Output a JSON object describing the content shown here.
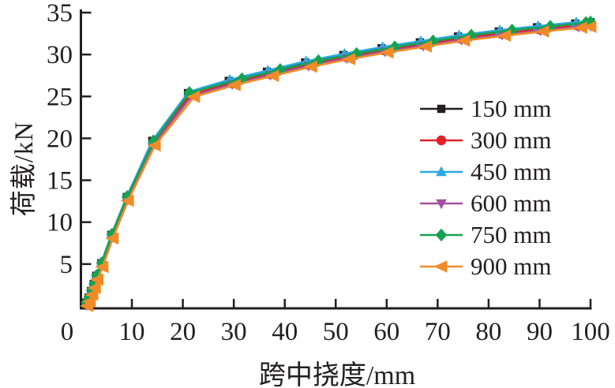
{
  "figure": {
    "background": "#ffffff",
    "text_color": "#231f20"
  },
  "chart_data": {
    "type": "line",
    "title": "",
    "xlabel": "跨中挠度/mm",
    "ylabel": "荷载/kN",
    "xlim": [
      0,
      100
    ],
    "ylim": [
      0,
      35
    ],
    "x_ticks": [
      0,
      10,
      20,
      30,
      40,
      50,
      60,
      70,
      80,
      90,
      100
    ],
    "y_ticks": [
      5,
      10,
      15,
      20,
      25,
      30,
      35
    ],
    "grid": false,
    "legend_position": "center-right",
    "axis_color": "#231f20",
    "series": [
      {
        "name": "150 mm",
        "color": "#231f20",
        "marker": "square",
        "points": [
          [
            1,
            0.4
          ],
          [
            1.5,
            1.0
          ],
          [
            2,
            1.8
          ],
          [
            2.5,
            2.6
          ],
          [
            3,
            3.6
          ],
          [
            4,
            5.1
          ],
          [
            6,
            8.5
          ],
          [
            9,
            13.0
          ],
          [
            14,
            19.7
          ],
          [
            21,
            25.4
          ],
          [
            29,
            26.85
          ],
          [
            36.5,
            27.95
          ],
          [
            44,
            29.05
          ],
          [
            51.5,
            29.95
          ],
          [
            59,
            30.75
          ],
          [
            66.5,
            31.45
          ],
          [
            74,
            32.15
          ],
          [
            82,
            32.75
          ],
          [
            89.5,
            33.25
          ],
          [
            97,
            33.7
          ],
          [
            100,
            33.85
          ]
        ]
      },
      {
        "name": "300 mm",
        "color": "#e02026",
        "marker": "circle",
        "points": [
          [
            1.1,
            0.25
          ],
          [
            1.6,
            0.85
          ],
          [
            2.1,
            1.65
          ],
          [
            2.6,
            2.45
          ],
          [
            3.1,
            3.45
          ],
          [
            4.1,
            4.95
          ],
          [
            6.1,
            8.35
          ],
          [
            9.1,
            12.85
          ],
          [
            14.2,
            19.45
          ],
          [
            21.4,
            25.15
          ],
          [
            29.4,
            26.6
          ],
          [
            36.9,
            27.7
          ],
          [
            44.4,
            28.8
          ],
          [
            51.9,
            29.7
          ],
          [
            59.4,
            30.5
          ],
          [
            66.9,
            31.2
          ],
          [
            74.4,
            31.9
          ],
          [
            82.4,
            32.5
          ],
          [
            89.9,
            33.0
          ],
          [
            97.4,
            33.45
          ],
          [
            100,
            33.6
          ]
        ]
      },
      {
        "name": "450 mm",
        "color": "#29a9e1",
        "marker": "triangle-up",
        "points": [
          [
            1.05,
            0.5
          ],
          [
            1.55,
            1.1
          ],
          [
            2.05,
            1.9
          ],
          [
            2.55,
            2.7
          ],
          [
            3.05,
            3.7
          ],
          [
            4.05,
            5.2
          ],
          [
            6.05,
            8.6
          ],
          [
            9.05,
            13.1
          ],
          [
            14.1,
            19.8
          ],
          [
            21.2,
            25.55
          ],
          [
            29.2,
            27.0
          ],
          [
            36.7,
            28.1
          ],
          [
            44.2,
            29.2
          ],
          [
            51.7,
            30.1
          ],
          [
            59.2,
            30.9
          ],
          [
            66.7,
            31.6
          ],
          [
            74.2,
            32.3
          ],
          [
            82.2,
            32.9
          ],
          [
            89.7,
            33.4
          ],
          [
            97.2,
            33.85
          ],
          [
            100,
            34.0
          ]
        ]
      },
      {
        "name": "600 mm",
        "color": "#a3519f",
        "marker": "triangle-down",
        "points": [
          [
            1.15,
            0.1
          ],
          [
            1.65,
            0.7
          ],
          [
            2.15,
            1.5
          ],
          [
            2.65,
            2.3
          ],
          [
            3.15,
            3.3
          ],
          [
            4.15,
            4.8
          ],
          [
            6.15,
            8.2
          ],
          [
            9.15,
            12.7
          ],
          [
            14.3,
            19.3
          ],
          [
            21.7,
            25.05
          ],
          [
            29.7,
            26.45
          ],
          [
            37.2,
            27.55
          ],
          [
            44.7,
            28.65
          ],
          [
            52.2,
            29.55
          ],
          [
            59.7,
            30.35
          ],
          [
            67.2,
            31.05
          ],
          [
            74.7,
            31.75
          ],
          [
            82.7,
            32.35
          ],
          [
            90.2,
            32.85
          ],
          [
            97.7,
            33.3
          ],
          [
            100,
            33.4
          ]
        ]
      },
      {
        "name": "750 mm",
        "color": "#17a253",
        "marker": "diamond",
        "points": [
          [
            1.1,
            0.45
          ],
          [
            1.6,
            1.05
          ],
          [
            2.1,
            1.85
          ],
          [
            2.6,
            2.65
          ],
          [
            3.1,
            3.65
          ],
          [
            4.1,
            5.15
          ],
          [
            6.1,
            8.55
          ],
          [
            9.1,
            13.05
          ],
          [
            14.3,
            19.65
          ],
          [
            21.3,
            25.45
          ],
          [
            31.6,
            27.1
          ],
          [
            39.1,
            28.2
          ],
          [
            46.6,
            29.25
          ],
          [
            54.1,
            30.1
          ],
          [
            61.6,
            30.9
          ],
          [
            69.1,
            31.6
          ],
          [
            76.6,
            32.3
          ],
          [
            84.6,
            32.9
          ],
          [
            92.1,
            33.35
          ],
          [
            99.1,
            33.8
          ],
          [
            100,
            33.85
          ]
        ]
      },
      {
        "name": "900 mm",
        "color": "#f08c28",
        "marker": "triangle-left",
        "points": [
          [
            1.25,
            0.0
          ],
          [
            1.75,
            0.55
          ],
          [
            2.25,
            1.35
          ],
          [
            2.75,
            2.15
          ],
          [
            3.25,
            3.15
          ],
          [
            4.25,
            4.65
          ],
          [
            6.25,
            8.05
          ],
          [
            9.25,
            12.55
          ],
          [
            14.5,
            19.15
          ],
          [
            22.2,
            24.95
          ],
          [
            30.2,
            26.35
          ],
          [
            37.7,
            27.45
          ],
          [
            45.2,
            28.55
          ],
          [
            52.7,
            29.45
          ],
          [
            60.2,
            30.25
          ],
          [
            67.7,
            30.95
          ],
          [
            75.2,
            31.65
          ],
          [
            83.2,
            32.25
          ],
          [
            90.7,
            32.75
          ],
          [
            98.2,
            33.2
          ],
          [
            100,
            33.3
          ]
        ]
      }
    ]
  }
}
